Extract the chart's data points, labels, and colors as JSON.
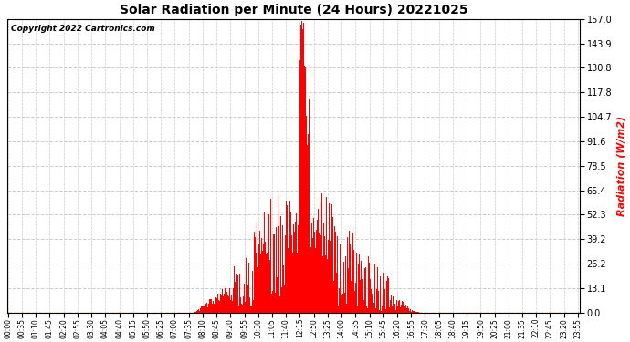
{
  "title": "Solar Radiation per Minute (24 Hours) 20221025",
  "ylabel": "Radiation (W/m2)",
  "ylabel_color": "#ff0000",
  "copyright_text": "Copyright 2022 Cartronics.com",
  "background_color": "#ffffff",
  "bar_color": "#ff0000",
  "grid_color": "#cccccc",
  "dashed_line_color": "#ff0000",
  "ylim": [
    0.0,
    157.0
  ],
  "yticks": [
    0.0,
    13.1,
    26.2,
    39.2,
    52.3,
    65.4,
    78.5,
    91.6,
    104.7,
    117.8,
    130.8,
    143.9,
    157.0
  ],
  "total_minutes": 1440,
  "sunrise_minute": 470,
  "sunset_minute": 1035,
  "tick_step": 35
}
